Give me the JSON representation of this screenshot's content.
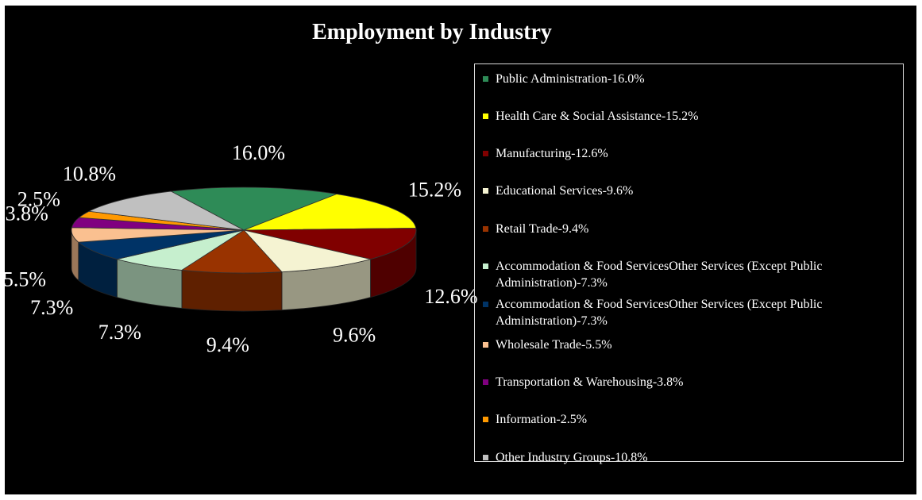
{
  "chart_data": {
    "type": "pie",
    "title": "Employment by Industry",
    "legend_position": "right",
    "slices": [
      {
        "label": "Public Administration-16.0%",
        "value": 16.0,
        "data_label": "16.0%",
        "color": "#2e8b57"
      },
      {
        "label": "Health Care & Social Assistance-15.2%",
        "value": 15.2,
        "data_label": "15.2%",
        "color": "#ffff00"
      },
      {
        "label": "Manufacturing-12.6%",
        "value": 12.6,
        "data_label": "12.6%",
        "color": "#800000"
      },
      {
        "label": "Educational Services-9.6%",
        "value": 9.6,
        "data_label": "9.6%",
        "color": "#f5f3d2"
      },
      {
        "label": "Retail Trade-9.4%",
        "value": 9.4,
        "data_label": "9.4%",
        "color": "#993300"
      },
      {
        "label": "Accommodation & Food ServicesOther Services (Except Public Administration)-7.3%",
        "value": 7.3,
        "data_label": "7.3%",
        "color": "#c6efce"
      },
      {
        "label": "Accommodation & Food ServicesOther Services (Except Public Administration)-7.3%",
        "value": 7.3,
        "data_label": "7.3%",
        "color": "#003366"
      },
      {
        "label": "Wholesale Trade-5.5%",
        "value": 5.5,
        "data_label": "5.5%",
        "color": "#fac090"
      },
      {
        "label": "Transportation & Warehousing-3.8%",
        "value": 3.8,
        "data_label": "3.8%",
        "color": "#800080"
      },
      {
        "label": "Information-2.5%",
        "value": 2.5,
        "data_label": "2.5%",
        "color": "#ff9900"
      },
      {
        "label": "Other Industry Groups-10.8%",
        "value": 10.8,
        "data_label": "10.8%",
        "color": "#c0c0c0"
      }
    ]
  }
}
